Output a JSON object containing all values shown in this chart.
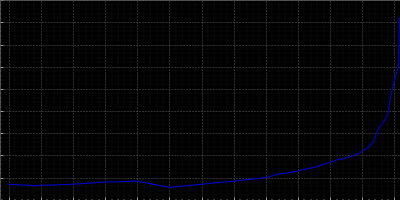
{
  "background_color": "#000000",
  "line_color": "#0000cc",
  "years": [
    1400,
    1440,
    1500,
    1550,
    1600,
    1650,
    1700,
    1750,
    1800,
    1812,
    1820,
    1830,
    1840,
    1850,
    1855,
    1861,
    1867,
    1871,
    1875,
    1880,
    1885,
    1890,
    1895,
    1900,
    1905,
    1910,
    1916,
    1919,
    1925,
    1933,
    1939,
    1946,
    1950,
    1956,
    1961,
    1964,
    1967,
    1970,
    1972,
    1975,
    1980,
    1985,
    1990,
    1995,
    2000,
    2002,
    2004,
    2006,
    2008
  ],
  "population": [
    3500,
    3200,
    3500,
    4000,
    4200,
    2800,
    3500,
    4200,
    5000,
    5500,
    5800,
    6000,
    6200,
    6500,
    6700,
    6900,
    7100,
    7200,
    7300,
    7500,
    7800,
    8000,
    8200,
    8500,
    8700,
    9000,
    9200,
    9100,
    9500,
    9800,
    10200,
    10500,
    11000,
    11500,
    12000,
    12500,
    13000,
    14000,
    15000,
    16000,
    17000,
    18000,
    19500,
    24000,
    27000,
    28000,
    29000,
    30000,
    41000
  ],
  "xlim": [
    1387,
    2008
  ],
  "ylim": [
    0,
    45000
  ],
  "ytick_major": [
    0,
    5000,
    10000,
    15000,
    20000,
    25000,
    30000,
    35000,
    40000,
    45000
  ],
  "ytick_minor_step": 1000,
  "xtick_major_step": 50,
  "xtick_minor_step": 10
}
